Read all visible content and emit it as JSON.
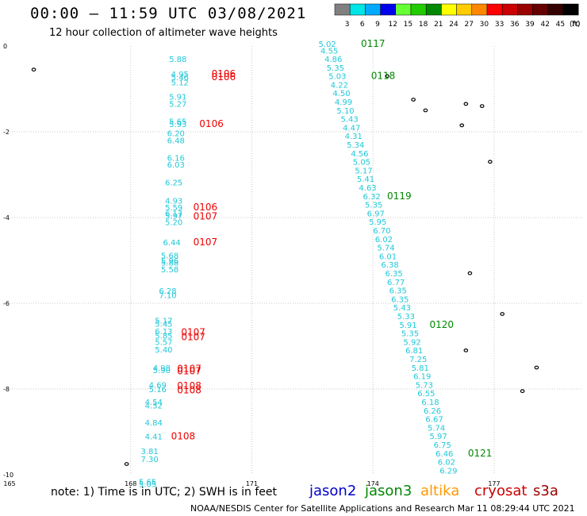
{
  "header": {
    "title": "00:00 – 11:59 UTC 03/08/2021",
    "subtitle": "12 hour collection of altimeter wave heights"
  },
  "legend": {
    "unit": "(ft)",
    "bins": [
      {
        "label": "3",
        "color": "#808080"
      },
      {
        "label": "6",
        "color": "#00e5e5"
      },
      {
        "label": "9",
        "color": "#00aaff"
      },
      {
        "label": "12",
        "color": "#0000ee"
      },
      {
        "label": "15",
        "color": "#66ff33"
      },
      {
        "label": "18",
        "color": "#22cc00"
      },
      {
        "label": "21",
        "color": "#008800"
      },
      {
        "label": "24",
        "color": "#ffff00"
      },
      {
        "label": "27",
        "color": "#ffcc00"
      },
      {
        "label": "30",
        "color": "#ff8800"
      },
      {
        "label": "33",
        "color": "#ff0000"
      },
      {
        "label": "36",
        "color": "#cc0000"
      },
      {
        "label": "39",
        "color": "#990000"
      },
      {
        "label": "42",
        "color": "#660000"
      },
      {
        "label": "45",
        "color": "#330000"
      },
      {
        "label": "70",
        "color": "#000000"
      }
    ]
  },
  "map": {
    "lon_ticks": [
      "165",
      "168",
      "171",
      "174",
      "177"
    ],
    "lat_ticks": [
      "0",
      "-2",
      "-4",
      "-6",
      "-8",
      "-10"
    ],
    "colors": {
      "swh": "#20c8d8",
      "time_red": "#ee0000",
      "time_green": "#008800"
    },
    "tracks": [
      {
        "name": "track-west",
        "points": [
          {
            "lon": 168.95,
            "lat": -0.37,
            "v": "5.88"
          },
          {
            "lon": 169.0,
            "lat": -0.72,
            "v": "4.95"
          },
          {
            "lon": 169.0,
            "lat": -0.8,
            "v": "5.46"
          },
          {
            "lon": 169.0,
            "lat": -0.92,
            "v": "5.12"
          },
          {
            "lon": 168.95,
            "lat": -1.25,
            "v": "5.91"
          },
          {
            "lon": 168.95,
            "lat": -1.42,
            "v": "5.27"
          },
          {
            "lon": 168.95,
            "lat": -1.82,
            "v": "5.65"
          },
          {
            "lon": 168.95,
            "lat": -1.89,
            "v": "5.93"
          },
          {
            "lon": 168.9,
            "lat": -2.1,
            "v": "6.20"
          },
          {
            "lon": 168.9,
            "lat": -2.27,
            "v": "6.48"
          },
          {
            "lon": 168.9,
            "lat": -2.68,
            "v": "6.16"
          },
          {
            "lon": 168.9,
            "lat": -2.83,
            "v": "6.03"
          },
          {
            "lon": 168.85,
            "lat": -3.25,
            "v": "6.25"
          },
          {
            "lon": 168.85,
            "lat": -3.68,
            "v": "4.93"
          },
          {
            "lon": 168.85,
            "lat": -3.83,
            "v": "5.59"
          },
          {
            "lon": 168.85,
            "lat": -3.97,
            "v": "6.17"
          },
          {
            "lon": 168.85,
            "lat": -4.03,
            "v": "5.97"
          },
          {
            "lon": 168.85,
            "lat": -4.18,
            "v": "5.20"
          },
          {
            "lon": 168.8,
            "lat": -4.65,
            "v": "6.44"
          },
          {
            "lon": 168.75,
            "lat": -4.95,
            "v": "5.68"
          },
          {
            "lon": 168.75,
            "lat": -5.07,
            "v": "5.96"
          },
          {
            "lon": 168.75,
            "lat": -5.12,
            "v": "5.88"
          },
          {
            "lon": 168.75,
            "lat": -5.28,
            "v": "5.58"
          },
          {
            "lon": 168.7,
            "lat": -5.78,
            "v": "6.28"
          },
          {
            "lon": 168.7,
            "lat": -5.88,
            "v": "7.10"
          },
          {
            "lon": 168.6,
            "lat": -6.47,
            "v": "5.17"
          },
          {
            "lon": 168.6,
            "lat": -6.55,
            "v": "5.45"
          },
          {
            "lon": 168.6,
            "lat": -6.72,
            "v": "6.13"
          },
          {
            "lon": 168.6,
            "lat": -6.82,
            "v": "5.85"
          },
          {
            "lon": 168.6,
            "lat": -6.97,
            "v": "5.57"
          },
          {
            "lon": 168.6,
            "lat": -7.15,
            "v": "5.40"
          },
          {
            "lon": 168.55,
            "lat": -7.57,
            "v": "4.98"
          },
          {
            "lon": 168.55,
            "lat": -7.63,
            "v": "5.90"
          },
          {
            "lon": 168.45,
            "lat": -7.97,
            "v": "4.69"
          },
          {
            "lon": 168.45,
            "lat": -8.07,
            "v": "5.16"
          },
          {
            "lon": 168.35,
            "lat": -8.37,
            "v": "4.54"
          },
          {
            "lon": 168.35,
            "lat": -8.45,
            "v": "4.32"
          },
          {
            "lon": 168.35,
            "lat": -8.85,
            "v": "4.84"
          },
          {
            "lon": 168.35,
            "lat": -9.18,
            "v": "4.41"
          },
          {
            "lon": 168.25,
            "lat": -9.52,
            "v": "3.81"
          },
          {
            "lon": 168.25,
            "lat": -9.7,
            "v": "7.30"
          },
          {
            "lon": 168.2,
            "lat": -10.23,
            "v": "5.65"
          },
          {
            "lon": 168.2,
            "lat": -10.29,
            "v": "5.05"
          }
        ],
        "times": [
          {
            "lon": 170.0,
            "lat": -0.72,
            "t": "0106",
            "c": "time_red"
          },
          {
            "lon": 170.0,
            "lat": -0.8,
            "t": "0106",
            "c": "time_red"
          },
          {
            "lon": 169.7,
            "lat": -1.89,
            "t": "0106",
            "c": "time_red"
          },
          {
            "lon": 169.55,
            "lat": -3.83,
            "t": "0106",
            "c": "time_red"
          },
          {
            "lon": 169.55,
            "lat": -4.05,
            "t": "0107",
            "c": "time_red"
          },
          {
            "lon": 169.55,
            "lat": -4.65,
            "t": "0107",
            "c": "time_red"
          },
          {
            "lon": 169.25,
            "lat": -6.75,
            "t": "0107",
            "c": "time_red"
          },
          {
            "lon": 169.25,
            "lat": -6.86,
            "t": "0107",
            "c": "time_red"
          },
          {
            "lon": 169.15,
            "lat": -7.6,
            "t": "0107",
            "c": "time_red"
          },
          {
            "lon": 169.15,
            "lat": -7.66,
            "t": "0107",
            "c": "time_red"
          },
          {
            "lon": 169.15,
            "lat": -8.0,
            "t": "0108",
            "c": "time_red"
          },
          {
            "lon": 169.15,
            "lat": -8.1,
            "t": "0108",
            "c": "time_red"
          },
          {
            "lon": 169.0,
            "lat": -9.18,
            "t": "0108",
            "c": "time_red"
          }
        ]
      },
      {
        "name": "track-east",
        "points": [
          {
            "lon": 172.65,
            "lat": -0.02,
            "v": "5.02"
          },
          {
            "lon": 172.7,
            "lat": -0.18,
            "v": "4.55"
          },
          {
            "lon": 172.8,
            "lat": -0.37,
            "v": "4.86"
          },
          {
            "lon": 172.85,
            "lat": -0.57,
            "v": "5.35"
          },
          {
            "lon": 172.9,
            "lat": -0.77,
            "v": "5.03"
          },
          {
            "lon": 172.95,
            "lat": -0.97,
            "v": "4.22"
          },
          {
            "lon": 173.0,
            "lat": -1.17,
            "v": "4.50"
          },
          {
            "lon": 173.05,
            "lat": -1.37,
            "v": "4.99"
          },
          {
            "lon": 173.1,
            "lat": -1.57,
            "v": "5.10"
          },
          {
            "lon": 173.2,
            "lat": -1.77,
            "v": "5.43"
          },
          {
            "lon": 173.25,
            "lat": -1.97,
            "v": "4.47"
          },
          {
            "lon": 173.3,
            "lat": -2.17,
            "v": "4.31"
          },
          {
            "lon": 173.35,
            "lat": -2.37,
            "v": "5.34"
          },
          {
            "lon": 173.45,
            "lat": -2.57,
            "v": "4.56"
          },
          {
            "lon": 173.5,
            "lat": -2.77,
            "v": "5.05"
          },
          {
            "lon": 173.55,
            "lat": -2.97,
            "v": "5.17"
          },
          {
            "lon": 173.6,
            "lat": -3.17,
            "v": "5.41"
          },
          {
            "lon": 173.65,
            "lat": -3.37,
            "v": "4.63"
          },
          {
            "lon": 173.75,
            "lat": -3.57,
            "v": "6.32"
          },
          {
            "lon": 173.8,
            "lat": -3.77,
            "v": "5.35"
          },
          {
            "lon": 173.85,
            "lat": -3.97,
            "v": "6.97"
          },
          {
            "lon": 173.9,
            "lat": -4.17,
            "v": "5.95"
          },
          {
            "lon": 174.0,
            "lat": -4.37,
            "v": "6.70"
          },
          {
            "lon": 174.05,
            "lat": -4.57,
            "v": "6.02"
          },
          {
            "lon": 174.1,
            "lat": -4.77,
            "v": "5.74"
          },
          {
            "lon": 174.15,
            "lat": -4.97,
            "v": "6.01"
          },
          {
            "lon": 174.2,
            "lat": -5.17,
            "v": "6.38"
          },
          {
            "lon": 174.3,
            "lat": -5.37,
            "v": "6.35"
          },
          {
            "lon": 174.35,
            "lat": -5.57,
            "v": "6.77"
          },
          {
            "lon": 174.4,
            "lat": -5.77,
            "v": "6.35"
          },
          {
            "lon": 174.45,
            "lat": -5.97,
            "v": "6.35"
          },
          {
            "lon": 174.5,
            "lat": -6.17,
            "v": "5.43"
          },
          {
            "lon": 174.6,
            "lat": -6.37,
            "v": "5.33"
          },
          {
            "lon": 174.65,
            "lat": -6.57,
            "v": "5.91"
          },
          {
            "lon": 174.7,
            "lat": -6.77,
            "v": "5.35"
          },
          {
            "lon": 174.75,
            "lat": -6.97,
            "v": "5.92"
          },
          {
            "lon": 174.8,
            "lat": -7.17,
            "v": "6.81"
          },
          {
            "lon": 174.9,
            "lat": -7.37,
            "v": "7.25"
          },
          {
            "lon": 174.95,
            "lat": -7.57,
            "v": "5.81"
          },
          {
            "lon": 175.0,
            "lat": -7.77,
            "v": "6.19"
          },
          {
            "lon": 175.05,
            "lat": -7.97,
            "v": "5.73"
          },
          {
            "lon": 175.1,
            "lat": -8.17,
            "v": "6.55"
          },
          {
            "lon": 175.2,
            "lat": -8.37,
            "v": "6.18"
          },
          {
            "lon": 175.25,
            "lat": -8.57,
            "v": "6.26"
          },
          {
            "lon": 175.3,
            "lat": -8.77,
            "v": "6.67"
          },
          {
            "lon": 175.35,
            "lat": -8.97,
            "v": "5.74"
          },
          {
            "lon": 175.4,
            "lat": -9.17,
            "v": "5.97"
          },
          {
            "lon": 175.5,
            "lat": -9.37,
            "v": "6.75"
          },
          {
            "lon": 175.55,
            "lat": -9.57,
            "v": "6.46"
          },
          {
            "lon": 175.6,
            "lat": -9.77,
            "v": "6.02"
          },
          {
            "lon": 175.65,
            "lat": -9.97,
            "v": "6.29"
          }
        ],
        "times": [
          {
            "lon": 173.7,
            "lat": -0.02,
            "t": "0117",
            "c": "time_green"
          },
          {
            "lon": 173.95,
            "lat": -0.77,
            "t": "0118",
            "c": "time_green"
          },
          {
            "lon": 174.35,
            "lat": -3.57,
            "t": "0119",
            "c": "time_green"
          },
          {
            "lon": 175.4,
            "lat": -6.57,
            "t": "0120",
            "c": "time_green"
          },
          {
            "lon": 176.35,
            "lat": -9.57,
            "t": "0121",
            "c": "time_green"
          }
        ]
      }
    ],
    "islands": [
      {
        "lon": 165.6,
        "lat": -0.55
      },
      {
        "lon": 174.35,
        "lat": -0.7
      },
      {
        "lon": 175.0,
        "lat": -1.25
      },
      {
        "lon": 175.3,
        "lat": -1.5
      },
      {
        "lon": 176.3,
        "lat": -1.35
      },
      {
        "lon": 176.7,
        "lat": -1.4
      },
      {
        "lon": 176.2,
        "lat": -1.85
      },
      {
        "lon": 176.9,
        "lat": -2.7
      },
      {
        "lon": 176.3,
        "lat": -7.1
      },
      {
        "lon": 177.2,
        "lat": -6.25
      },
      {
        "lon": 178.05,
        "lat": -7.5
      },
      {
        "lon": 177.7,
        "lat": -8.05
      },
      {
        "lon": 167.9,
        "lat": -9.75
      },
      {
        "lon": 176.4,
        "lat": -5.3
      }
    ]
  },
  "note": {
    "text": "note: 1) Time is in UTC; 2) SWH is in feet"
  },
  "satellites": [
    {
      "label": "jason2",
      "color": "#0000cc"
    },
    {
      "label": "jason3",
      "color": "#008800"
    },
    {
      "label": "altika",
      "color": "#ff9900"
    },
    {
      "label": "cryosat",
      "color": "#cc0000"
    },
    {
      "label": "s3a",
      "color": "#990000"
    }
  ],
  "footer": {
    "text": "NOAA/NESDIS Center for Satellite Applications and Research    Mar 11 08:29:44 UTC 2021"
  }
}
